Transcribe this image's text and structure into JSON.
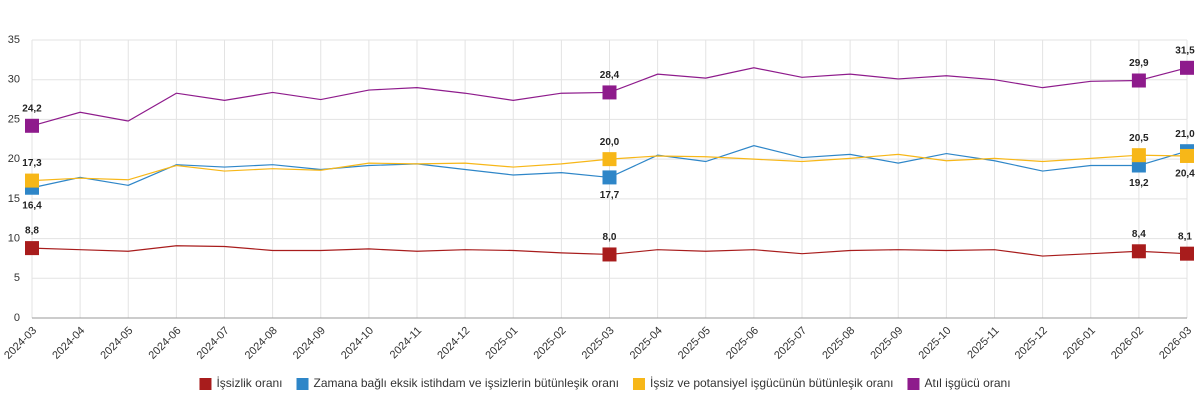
{
  "chart_data": {
    "type": "line",
    "categories": [
      "2024-03",
      "2024-04",
      "2024-05",
      "2024-06",
      "2024-07",
      "2024-08",
      "2024-09",
      "2024-10",
      "2024-11",
      "2024-12",
      "2025-01",
      "2025-02",
      "2025-03",
      "2025-04",
      "2025-05",
      "2025-06",
      "2025-07",
      "2025-08",
      "2025-09",
      "2025-10",
      "2025-11",
      "2025-12",
      "2026-01",
      "2026-02",
      "2026-03"
    ],
    "ylim": [
      0,
      35
    ],
    "yticks": [
      0,
      5,
      10,
      15,
      20,
      25,
      30,
      35
    ],
    "grid": true,
    "series": [
      {
        "name": "İşsizlik oranı",
        "color": "#a81c1c",
        "values": [
          8.8,
          8.6,
          8.4,
          9.1,
          9.0,
          8.5,
          8.5,
          8.7,
          8.4,
          8.6,
          8.5,
          8.2,
          8.0,
          8.6,
          8.4,
          8.6,
          8.1,
          8.5,
          8.6,
          8.5,
          8.6,
          7.8,
          8.1,
          8.4,
          8.1
        ],
        "value_labels": [
          "8,8",
          null,
          null,
          null,
          null,
          null,
          null,
          null,
          null,
          null,
          null,
          null,
          "8,0",
          null,
          null,
          null,
          null,
          null,
          null,
          null,
          null,
          null,
          null,
          "8,4",
          "8,1"
        ]
      },
      {
        "name": "Zamana bağlı eksik istihdam ve işsizlerin bütünleşik oranı",
        "color": "#2e86c8",
        "values": [
          16.4,
          17.7,
          16.7,
          19.3,
          19.0,
          19.3,
          18.7,
          19.2,
          19.4,
          18.7,
          18.0,
          18.3,
          17.7,
          20.5,
          19.7,
          21.7,
          20.2,
          20.6,
          19.5,
          20.7,
          19.8,
          18.5,
          19.2,
          19.2,
          21.0
        ],
        "value_labels": [
          "16,4",
          null,
          null,
          null,
          null,
          null,
          null,
          null,
          null,
          null,
          null,
          null,
          "17,7",
          null,
          null,
          null,
          null,
          null,
          null,
          null,
          null,
          null,
          null,
          "19,2",
          "21,0"
        ]
      },
      {
        "name": "İşsiz ve potansiyel işgücünün bütünleşik oranı",
        "color": "#f7b718",
        "values": [
          17.3,
          17.6,
          17.4,
          19.2,
          18.5,
          18.8,
          18.6,
          19.5,
          19.4,
          19.5,
          19.0,
          19.4,
          20.0,
          20.4,
          20.3,
          20.0,
          19.7,
          20.1,
          20.6,
          19.8,
          20.1,
          19.7,
          20.1,
          20.5,
          20.4
        ],
        "value_labels": [
          "17,3",
          null,
          null,
          null,
          null,
          null,
          null,
          null,
          null,
          null,
          null,
          null,
          "20,0",
          null,
          null,
          null,
          null,
          null,
          null,
          null,
          null,
          null,
          null,
          "20,5",
          "20,4"
        ]
      },
      {
        "name": "Atıl işgücü oranı",
        "color": "#8e1b8c",
        "values": [
          24.2,
          25.9,
          24.8,
          28.3,
          27.4,
          28.4,
          27.5,
          28.7,
          29.0,
          28.3,
          27.4,
          28.3,
          28.4,
          30.7,
          30.2,
          31.5,
          30.3,
          30.7,
          30.1,
          30.5,
          30.0,
          29.0,
          29.8,
          29.9,
          31.5
        ],
        "value_labels": [
          "24,2",
          null,
          null,
          null,
          null,
          null,
          null,
          null,
          null,
          null,
          null,
          null,
          "28,4",
          null,
          null,
          null,
          null,
          null,
          null,
          null,
          null,
          null,
          null,
          "29,9",
          "31,5"
        ]
      }
    ]
  }
}
